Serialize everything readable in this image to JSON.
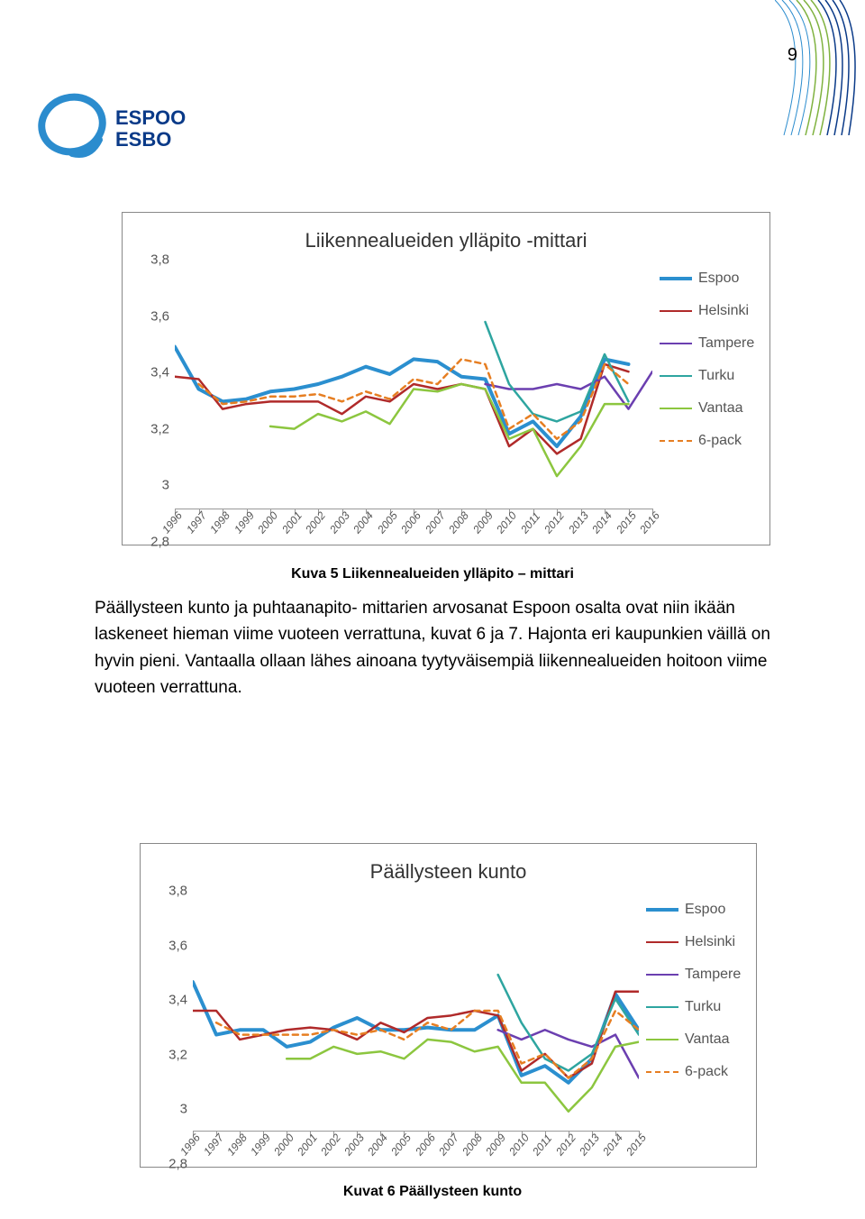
{
  "page_number": "9",
  "corner_colors": [
    "#2b8cce",
    "#7fb23f",
    "#0a3a88"
  ],
  "logo": {
    "ring_color": "#2b8cce",
    "text1": "ESPOO",
    "text2": "ESBO",
    "text_color": "#0a3a88"
  },
  "legend_items": [
    {
      "label": "Espoo",
      "color": "#2b8fcf",
      "dash": "solid",
      "width": 4
    },
    {
      "label": "Helsinki",
      "color": "#b02a2a",
      "dash": "solid",
      "width": 2.5
    },
    {
      "label": "Tampere",
      "color": "#6b3fb0",
      "dash": "solid",
      "width": 2.5
    },
    {
      "label": "Turku",
      "color": "#2ea5a0",
      "dash": "solid",
      "width": 2.5
    },
    {
      "label": "Vantaa",
      "color": "#8cc63f",
      "dash": "solid",
      "width": 2.5
    },
    {
      "label": "6-pack",
      "color": "#e67e22",
      "dash": "6,5",
      "width": 2.5
    }
  ],
  "chart1": {
    "title": "Liikennealueiden ylläpito -mittari",
    "caption": "Kuva 5 Liikennealueiden ylläpito – mittari",
    "ylim": [
      2.8,
      3.8
    ],
    "yticks": [
      "2,8",
      "3",
      "3,2",
      "3,4",
      "3,6",
      "3,8"
    ],
    "years": [
      "1996",
      "1997",
      "1998",
      "1999",
      "2000",
      "2001",
      "2002",
      "2003",
      "2004",
      "2005",
      "2006",
      "2007",
      "2008",
      "2009",
      "2010",
      "2011",
      "2012",
      "2013",
      "2014",
      "2015",
      "2016"
    ],
    "series": {
      "Espoo": [
        3.45,
        3.28,
        3.23,
        3.24,
        3.27,
        3.28,
        3.3,
        3.33,
        3.37,
        3.34,
        3.4,
        3.39,
        3.33,
        3.32,
        3.1,
        3.15,
        3.05,
        3.17,
        3.4,
        3.38,
        null
      ],
      "Helsinki": [
        3.33,
        3.32,
        3.2,
        3.22,
        3.23,
        3.23,
        3.23,
        3.18,
        3.25,
        3.23,
        3.3,
        3.28,
        3.3,
        3.28,
        3.05,
        3.12,
        3.02,
        3.08,
        3.38,
        3.35,
        null
      ],
      "Tampere": [
        null,
        null,
        null,
        null,
        null,
        null,
        null,
        null,
        null,
        null,
        null,
        null,
        null,
        3.3,
        3.28,
        3.28,
        3.3,
        3.28,
        3.33,
        3.2,
        3.35
      ],
      "Turku": [
        null,
        null,
        null,
        null,
        null,
        null,
        null,
        null,
        null,
        null,
        null,
        null,
        null,
        3.55,
        3.3,
        3.18,
        3.15,
        3.19,
        3.42,
        3.23,
        null
      ],
      "Vantaa": [
        null,
        null,
        null,
        null,
        3.13,
        3.12,
        3.18,
        3.15,
        3.19,
        3.14,
        3.28,
        3.27,
        3.3,
        3.28,
        3.08,
        3.12,
        2.93,
        3.05,
        3.22,
        3.22,
        null
      ],
      "6-pack": [
        null,
        3.3,
        3.22,
        3.23,
        3.25,
        3.25,
        3.26,
        3.23,
        3.27,
        3.24,
        3.32,
        3.3,
        3.4,
        3.38,
        3.12,
        3.18,
        3.08,
        3.15,
        3.38,
        3.3,
        null
      ]
    }
  },
  "body_paragraph": "Päällysteen kunto ja puhtaanapito- mittarien arvosanat Espoon osalta ovat niin ikään laskeneet hieman viime vuoteen verrattuna, kuvat 6 ja 7. Hajonta eri kaupunkien väillä on hyvin pieni. Vantaalla ollaan lähes ainoana tyytyväisempiä liikennealueiden hoitoon viime vuoteen verrattuna.",
  "chart2": {
    "title": "Päällysteen kunto",
    "caption": "Kuvat 6 Päällysteen kunto",
    "ylim": [
      2.8,
      3.8
    ],
    "yticks": [
      "2,8",
      "3",
      "3,2",
      "3,4",
      "3,6",
      "3,8"
    ],
    "years": [
      "1996",
      "1997",
      "1998",
      "1999",
      "2000",
      "2001",
      "2002",
      "2003",
      "2004",
      "2005",
      "2006",
      "2007",
      "2008",
      "2009",
      "2010",
      "2011",
      "2012",
      "2013",
      "2014",
      "2015"
    ],
    "series": {
      "Espoo": [
        3.42,
        3.2,
        3.22,
        3.22,
        3.15,
        3.17,
        3.23,
        3.27,
        3.22,
        3.22,
        3.23,
        3.22,
        3.22,
        3.28,
        3.03,
        3.07,
        3.0,
        3.1,
        3.37,
        3.22
      ],
      "Helsinki": [
        3.3,
        3.3,
        3.18,
        3.2,
        3.22,
        3.23,
        3.22,
        3.18,
        3.25,
        3.21,
        3.27,
        3.28,
        3.3,
        3.28,
        3.05,
        3.12,
        3.02,
        3.08,
        3.38,
        3.38
      ],
      "Tampere": [
        null,
        null,
        null,
        null,
        null,
        null,
        null,
        null,
        null,
        null,
        null,
        null,
        null,
        3.22,
        3.18,
        3.22,
        3.18,
        3.15,
        3.2,
        3.02
      ],
      "Turku": [
        null,
        null,
        null,
        null,
        null,
        null,
        null,
        null,
        null,
        null,
        null,
        null,
        null,
        3.45,
        3.25,
        3.1,
        3.05,
        3.12,
        3.35,
        3.2
      ],
      "Vantaa": [
        null,
        null,
        null,
        null,
        3.1,
        3.1,
        3.15,
        3.12,
        3.13,
        3.1,
        3.18,
        3.17,
        3.13,
        3.15,
        3.0,
        3.0,
        2.88,
        2.98,
        3.15,
        3.17
      ],
      "6-pack": [
        null,
        3.25,
        3.2,
        3.2,
        3.2,
        3.2,
        3.22,
        3.2,
        3.22,
        3.18,
        3.25,
        3.22,
        3.3,
        3.3,
        3.08,
        3.12,
        3.02,
        3.1,
        3.3,
        3.22
      ]
    }
  }
}
